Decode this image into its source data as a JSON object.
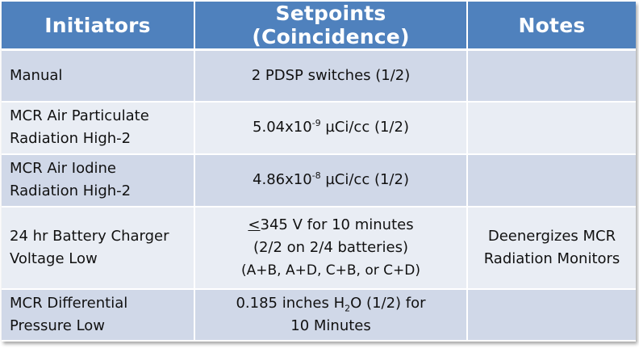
{
  "headers": {
    "col1": "Initiators",
    "col2": "Setpoints (Coincidence)",
    "col3": "Notes"
  },
  "rows": [
    {
      "initiator": "Manual",
      "setpoint": "2 PDSP switches (1/2)",
      "notes": ""
    },
    {
      "initiator_line1": "MCR Air Particulate",
      "initiator_line2": "Radiation High-2",
      "setpoint_base": "5.04x10",
      "setpoint_exp": "-9",
      "setpoint_rest": " µCi/cc (1/2)",
      "notes": ""
    },
    {
      "initiator_line1": "MCR Air Iodine",
      "initiator_line2": "Radiation High-2",
      "setpoint_base": "4.86x10",
      "setpoint_exp": "-8",
      "setpoint_rest": " µCi/cc (1/2)",
      "notes": ""
    },
    {
      "initiator_line1": "24 hr Battery Charger",
      "initiator_line2": "Voltage Low",
      "setpoint_le": "<",
      "setpoint_line1_rest": "345 V for 10 minutes",
      "setpoint_line2": "(2/2 on 2/4 batteries)",
      "setpoint_line3": "(A+B, A+D, C+B, or C+D)",
      "notes_line1": "Deenergizes MCR",
      "notes_line2": "Radiation Monitors"
    },
    {
      "initiator_line1": "MCR Differential",
      "initiator_line2": "Pressure Low",
      "setpoint_pre": "0.185 inches H",
      "setpoint_sub": "2",
      "setpoint_post": "O (1/2) for",
      "setpoint_line2": "10 Minutes",
      "notes": ""
    }
  ],
  "colors": {
    "header_bg": "#4f81bd",
    "row_odd_bg": "#d0d8e8",
    "row_even_bg": "#e9edf4"
  }
}
